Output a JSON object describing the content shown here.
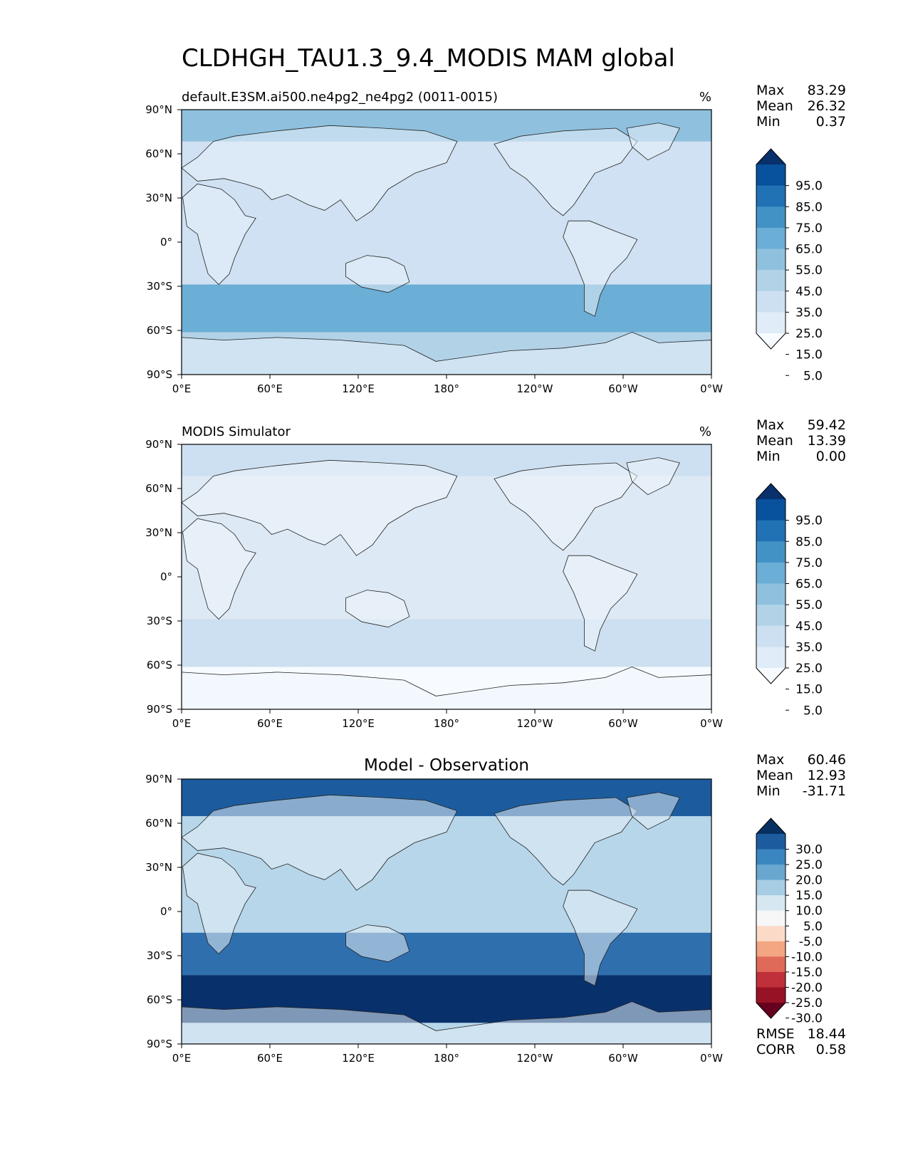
{
  "title": "CLDHGH_TAU1.3_9.4_MODIS MAM global",
  "x_ticks": [
    "0°E",
    "60°E",
    "120°E",
    "180°",
    "120°W",
    "60°W",
    "0°W"
  ],
  "y_ticks": [
    "90°N",
    "60°N",
    "30°N",
    "0°",
    "30°S",
    "60°S",
    "90°S"
  ],
  "panels": [
    {
      "id": "test",
      "left_title": "default.E3SM.ai500.ne4pg2_ne4pg2 (0011-0015)",
      "center_title": "",
      "units": "%",
      "stats": [
        {
          "label": "Max",
          "value": "83.29"
        },
        {
          "label": "Mean",
          "value": "26.32"
        },
        {
          "label": "Min",
          "value": "0.37"
        }
      ],
      "colorbar_labels": [
        "95.0",
        "85.0",
        "75.0",
        "65.0",
        "55.0",
        "45.0",
        "35.0",
        "25.0",
        "15.0",
        "5.0"
      ],
      "colorbar_colors": [
        "#08306b",
        "#08519c",
        "#2171b5",
        "#4292c6",
        "#6baed6",
        "#8fc1de",
        "#b2d2e8",
        "#cde0f1",
        "#e0ecf7",
        "#f7fbff"
      ],
      "field_colors": {
        "ocean": "#cfe1f2",
        "land": "#e7f0f9"
      },
      "extra_stats": []
    },
    {
      "id": "ref",
      "left_title": "MODIS Simulator",
      "center_title": "",
      "units": "%",
      "stats": [
        {
          "label": "Max",
          "value": "59.42"
        },
        {
          "label": "Mean",
          "value": "13.39"
        },
        {
          "label": "Min",
          "value": "0.00"
        }
      ],
      "colorbar_labels": [
        "95.0",
        "85.0",
        "75.0",
        "65.0",
        "55.0",
        "45.0",
        "35.0",
        "25.0",
        "15.0",
        "5.0"
      ],
      "colorbar_colors": [
        "#08306b",
        "#08519c",
        "#2171b5",
        "#4292c6",
        "#6baed6",
        "#8fc1de",
        "#b2d2e8",
        "#cde0f1",
        "#e0ecf7",
        "#f7fbff"
      ],
      "field_colors": {
        "ocean": "#dde9f5",
        "land": "#eff5fb"
      },
      "extra_stats": []
    },
    {
      "id": "diff",
      "left_title": "",
      "center_title": "Model - Observation",
      "units": "",
      "stats": [
        {
          "label": "Max",
          "value": "60.46"
        },
        {
          "label": "Mean",
          "value": "12.93"
        },
        {
          "label": "Min",
          "value": "-31.71"
        }
      ],
      "colorbar_labels": [
        "30.0",
        "25.0",
        "20.0",
        "15.0",
        "10.0",
        "5.0",
        "-5.0",
        "-10.0",
        "-15.0",
        "-20.0",
        "-25.0",
        "-30.0"
      ],
      "colorbar_colors": [
        "#053061",
        "#1c5c9e",
        "#3a86c0",
        "#6aa7d0",
        "#a6cde3",
        "#d6e7f1",
        "#f7f7f7",
        "#fbdbc8",
        "#f4a582",
        "#e06a5a",
        "#c0303a",
        "#981225",
        "#67001f"
      ],
      "field_colors": {
        "ocean": "#b7d6ea",
        "land": "#e3eef6"
      },
      "extra_stats": [
        {
          "label": "RMSE",
          "value": "18.44"
        },
        {
          "label": "CORR",
          "value": "0.58"
        }
      ]
    }
  ]
}
